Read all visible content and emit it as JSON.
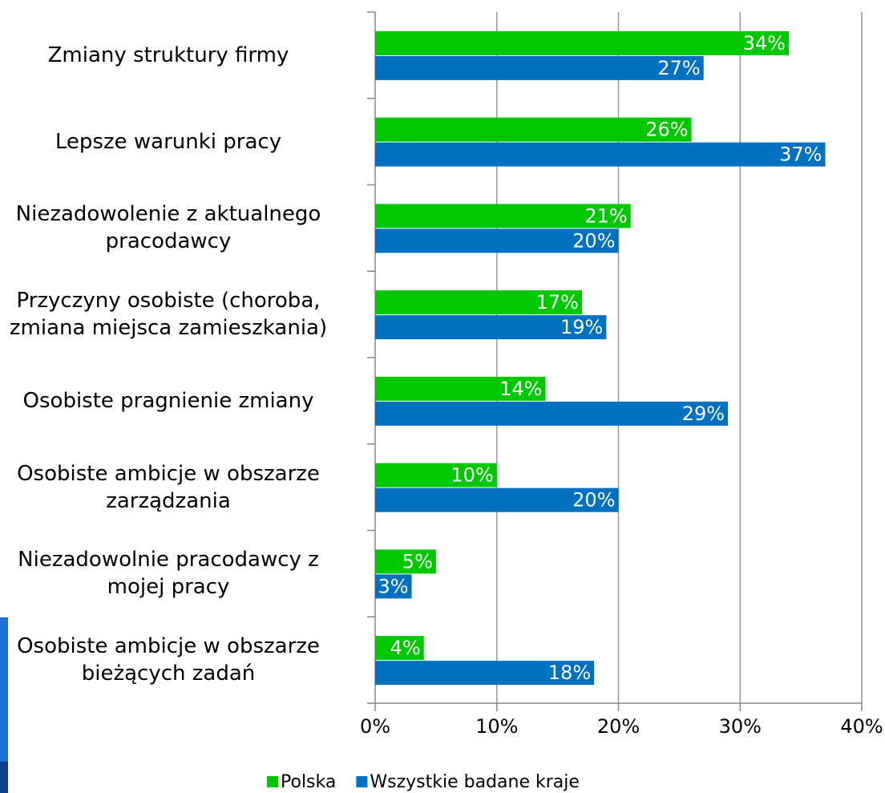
{
  "chart_data": {
    "type": "hbar",
    "categories": [
      "Zmiany struktury firmy",
      "Lepsze warunki pracy",
      "Niezadowolenie z aktualnego\npracodawcy",
      "Przyczyny osobiste (choroba,\nzmiana miejsca zamieszkania)",
      "Osobiste pragnienie zmiany",
      "Osobiste ambicje w obszarze\nzarządzania",
      "Niezadowolnie pracodawcy z\nmojej pracy",
      "Osobiste ambicje w obszarze\nbieżących zadań"
    ],
    "series": [
      {
        "name": "Polska",
        "color": "#00c800",
        "values": [
          34,
          26,
          21,
          17,
          14,
          10,
          5,
          4
        ],
        "value_labels": [
          "34%",
          "26%",
          "21%",
          "17%",
          "14%",
          "10%",
          "5%",
          "4%"
        ]
      },
      {
        "name": "Wszystkie badane kraje",
        "color": "#0070c0",
        "values": [
          27,
          37,
          20,
          19,
          29,
          20,
          3,
          18
        ],
        "value_labels": [
          "27%",
          "37%",
          "20%",
          "19%",
          "29%",
          "20%",
          "3%",
          "18%"
        ]
      }
    ],
    "xlim": [
      0,
      40
    ],
    "xticks": [
      {
        "value": 0,
        "label": "0%"
      },
      {
        "value": 10,
        "label": "10%"
      },
      {
        "value": 20,
        "label": "20%"
      },
      {
        "value": 30,
        "label": "30%"
      },
      {
        "value": 40,
        "label": "40%"
      }
    ],
    "grid": true,
    "legend": "bottom"
  }
}
